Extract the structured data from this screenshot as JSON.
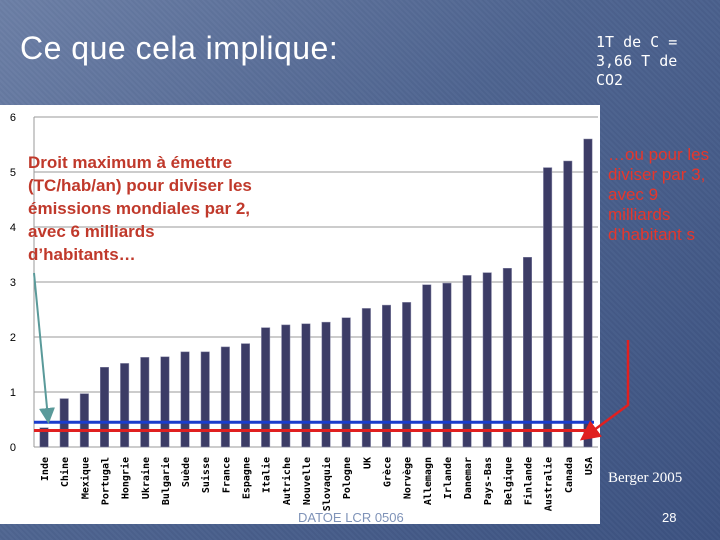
{
  "slide": {
    "title": "Ce que cela implique:",
    "note": "1T de C = 3,66 T de CO2",
    "overlay_left": "Droit maximum à émettre (TC/hab/an) pour diviser les émissions mondiales par 2, avec 6 milliards d’habitants…",
    "overlay_right": "…ou pour les diviser par 3, avec 9 milliards d’habitant s",
    "source": "Berger 2005",
    "footer": "DATOE LCR 0506",
    "page_number": "28"
  },
  "colors": {
    "background": "#4e6490",
    "bar": "#3c3c66",
    "line_blue": "#1a3ccc",
    "line_red": "#e02020",
    "arrow_left": "#5a9a9a",
    "arrow_right": "#e02020",
    "overlay_left_text": "#c0392b",
    "overlay_right_text": "#e6362b"
  },
  "chart_data": {
    "type": "bar",
    "categories": [
      "Inde",
      "Chine",
      "Mexique",
      "Portugal",
      "Hongrie",
      "Ukraine",
      "Bulgarie",
      "Suède",
      "Suisse",
      "France",
      "Espagne",
      "Italie",
      "Autriche",
      "Nouvelle",
      "Slovaquie",
      "Pologne",
      "UK",
      "Grèce",
      "Norvège",
      "Allemagn",
      "Irlande",
      "Danemar",
      "Pays-Bas",
      "Belgique",
      "Finlande",
      "Australie",
      "Canada",
      "USA"
    ],
    "values": [
      0.35,
      0.88,
      0.97,
      1.45,
      1.52,
      1.63,
      1.64,
      1.73,
      1.73,
      1.82,
      1.88,
      2.17,
      2.22,
      2.24,
      2.27,
      2.35,
      2.52,
      2.58,
      2.63,
      2.95,
      2.98,
      3.12,
      3.17,
      3.25,
      3.45,
      5.08,
      5.2,
      5.6
    ],
    "ylim": [
      0,
      6
    ],
    "yticks": [
      "0",
      "1",
      "2",
      "3",
      "4",
      "5",
      "6"
    ],
    "reference_lines": [
      {
        "value": 0.45
      },
      {
        "value": 0.3
      }
    ],
    "grid": true
  }
}
